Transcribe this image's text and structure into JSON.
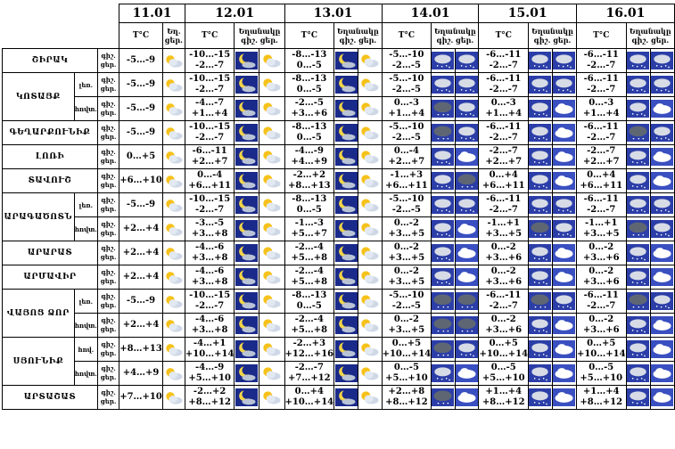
{
  "labels": {
    "day_night_short": "ցեր.",
    "day_night_lines": [
      "գիշ.",
      "ցեր."
    ],
    "temp_unit": "T°C",
    "cloud_first": "Եղ.",
    "cloud_header": "Եղանակը",
    "night_short": "գիշ.",
    "day_short": "ցեր."
  },
  "dates": [
    "11.01",
    "12.01",
    "13.01",
    "14.01",
    "15.01",
    "16.01"
  ],
  "regions": [
    {
      "name": "ՇԻՐԱԿ",
      "subs": [
        {
          "name": "",
          "t": [
            "-5…-9",
            "-10…-15|-2…-7",
            "-8…-13|0…-5",
            "-5…-10|-2…-5",
            "-6…-11|-2…-7",
            "-6…-11|-2…-7"
          ],
          "icons": [
            "sun-cloud",
            "moon|sun-cloud",
            "moon|sun-cloud",
            "snow|snow",
            "snow|snow",
            "snow|snow"
          ]
        }
      ]
    },
    {
      "name": "ԿՈՏԱՅՔ",
      "subs": [
        {
          "name": "լեռ.",
          "t": [
            "-5…-9",
            "-10…-15|-2…-7",
            "-8…-13|0…-5",
            "-5…-10|-2…-5",
            "-6…-11|-2…-7",
            "-6…-11|-2…-7"
          ],
          "icons": [
            "sun-cloud",
            "moon|sun-cloud",
            "moon|sun-cloud",
            "snow|snow",
            "snow|snow",
            "snow|snow"
          ]
        },
        {
          "name": "հովտ.",
          "t": [
            "-5…-9",
            "-4…-7|+1…+4",
            "-2…-5|+3…+6",
            "0…-3|+1…+4",
            "0…-3|+1…+4",
            "0…-3|+1…+4"
          ],
          "icons": [
            "sun-cloud",
            "moon|sun-cloud",
            "moon|sun-cloud",
            "storm|snow",
            "snow|cloud",
            "snow|cloud"
          ]
        }
      ]
    },
    {
      "name": "ԳԵՂԱՐՔՈՒՆԻՔ",
      "subs": [
        {
          "name": "",
          "t": [
            "-5…-9",
            "-10…-15|-2…-7",
            "-8…-13|0…-5",
            "-5…-10|-2…-5",
            "-6…-11|-2…-7",
            "-6…-11|-2…-7"
          ],
          "icons": [
            "sun-cloud",
            "moon|sun-cloud",
            "moon|sun-cloud",
            "storm|snow",
            "snow|cloud",
            "storm|snow"
          ]
        }
      ]
    },
    {
      "name": "ԼՈՌԻ",
      "subs": [
        {
          "name": "",
          "t": [
            "0…+5",
            "-6…-11|+2…+7",
            "-4…-9|+4…+9",
            "0…-4|+2…+7",
            "-2…-7|+2…+7",
            "-2…-7|+2…+7"
          ],
          "icons": [
            "sun-cloud",
            "moon|sun-cloud",
            "moon|sun-cloud",
            "snow|cloud",
            "snow|cloud",
            "snow|cloud"
          ]
        }
      ]
    },
    {
      "name": "ՏԱՎՈՒՇ",
      "subs": [
        {
          "name": "",
          "t": [
            "+6…+10",
            "0…-4|+6…+11",
            "-2…+2|+8…+13",
            "-1…+3|+6…+11",
            "0…+4|+6…+11",
            "0…+4|+6…+11"
          ],
          "icons": [
            "sun-cloud",
            "moon|sun-cloud",
            "moon|sun-cloud",
            "snow|storm",
            "snow|cloud",
            "snow|cloud"
          ]
        }
      ]
    },
    {
      "name": "ԱՐԱԳԱԾՈՏՆ",
      "subs": [
        {
          "name": "լեռ.",
          "t": [
            "-5…-9",
            "-10…-15|-2…-7",
            "-8…-13|0…-5",
            "-5…-10|-2…-5",
            "-6…-11|-2…-7",
            "-6…-11|-2…-7"
          ],
          "icons": [
            "sun-cloud",
            "moon|sun-cloud",
            "moon|sun-cloud",
            "snow|snow",
            "snow|snow",
            "snow|snow"
          ]
        },
        {
          "name": "հովտ.",
          "t": [
            "+2…+4",
            "-3…-5|+3…+8",
            "-1…-3|+5…+7",
            "0…-2|+3…+5",
            "-1…+1|+3…+5",
            "-1…+1|+3…+5"
          ],
          "icons": [
            "sun-cloud",
            "moon|sun-cloud",
            "moon|sun-cloud",
            "snow|cloud",
            "storm|snow",
            "storm|snow"
          ]
        }
      ]
    },
    {
      "name": "ԱՐԱՐԱՏ",
      "subs": [
        {
          "name": "",
          "t": [
            "+2…+4",
            "-4…-6|+3…+8",
            "-2…-4|+5…+8",
            "0…-2|+3…+5",
            "0…-2|+3…+6",
            "0…-2|+3…+6"
          ],
          "icons": [
            "sun-cloud",
            "moon|sun-cloud",
            "moon|sun-cloud",
            "snow|cloud",
            "snow|cloud",
            "snow|cloud"
          ]
        }
      ]
    },
    {
      "name": "ԱՐՄԱՎԻՐ",
      "subs": [
        {
          "name": "",
          "t": [
            "+2…+4",
            "-4…-6|+3…+8",
            "-2…-4|+5…+8",
            "0…-2|+3…+5",
            "0…-2|+3…+6",
            "0…-2|+3…+6"
          ],
          "icons": [
            "sun-cloud",
            "moon|sun-cloud",
            "moon|sun-cloud",
            "snow|cloud",
            "snow|cloud",
            "snow|cloud"
          ]
        }
      ]
    },
    {
      "name": "ՎԱՅՈՑ ՁՈՐ",
      "subs": [
        {
          "name": "լեռ.",
          "t": [
            "-5…-9",
            "-10…-15|-2…-7",
            "-8…-13|0…-5",
            "-5…-10|-2…-5",
            "-6…-11|-2…-7",
            "-6…-11|-2…-7"
          ],
          "icons": [
            "sun-cloud",
            "moon|sun-cloud",
            "moon|sun-cloud",
            "storm|storm",
            "storm|snow",
            "storm|snow"
          ]
        },
        {
          "name": "հովտ.",
          "t": [
            "+2…+4",
            "-4…-6|+3…+8",
            "-2…-4|+5…+8",
            "0…-2|+3…+5",
            "0…-2|+3…+6",
            "0…-2|+3…+6"
          ],
          "icons": [
            "sun-cloud",
            "moon|sun-cloud",
            "moon|sun-cloud",
            "storm|storm",
            "snow|cloud",
            "snow|cloud"
          ]
        }
      ]
    },
    {
      "name": "ՍՅՈՒՆԻՔ",
      "subs": [
        {
          "name": "հով.",
          "t": [
            "+8…+13",
            "-4…+1|+10…+14",
            "-2…+3|+12…+16",
            "0…+5|+10…+14",
            "0…+5|+10…+14",
            "0…+5|+10…+14"
          ],
          "icons": [
            "sun-cloud",
            "moon|sun-cloud",
            "moon|sun-cloud",
            "storm|snow",
            "snow|cloud",
            "snow|cloud"
          ]
        },
        {
          "name": "հովտ.",
          "t": [
            "+4…+9",
            "-4…-9|+5…+10",
            "-2…-7|+7…+12",
            "0…-5|+5…+10",
            "0…-5|+5…+10",
            "0…-5|+5…+10"
          ],
          "icons": [
            "sun-cloud",
            "moon|sun-cloud",
            "moon|sun-cloud",
            "snow|cloud",
            "snow|cloud",
            "snow|cloud"
          ]
        }
      ]
    },
    {
      "name": "ԱՐՏԱՇԱՏ",
      "subs": [
        {
          "name": "",
          "t": [
            "+7…+10",
            "-2…+2|+8…+12",
            "0…+4|+10…+14",
            "+2…+8|+8…+12",
            "+1…+4|+8…+12",
            "+1…+4|+8…+12"
          ],
          "icons": [
            "sun-cloud",
            "moon|sun-cloud",
            "moon|sun-cloud",
            "storm|cloud",
            "snow|cloud",
            "snow|cloud"
          ]
        }
      ]
    }
  ]
}
